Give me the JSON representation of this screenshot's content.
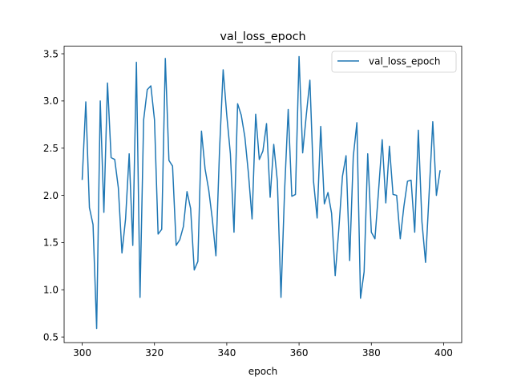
{
  "chart_data": {
    "type": "line",
    "title": "val_loss_epoch",
    "xlabel": "epoch",
    "ylabel": "",
    "xlim": [
      295,
      405
    ],
    "ylim": [
      0.44,
      3.58
    ],
    "xticks": [
      300,
      320,
      340,
      360,
      380,
      400
    ],
    "yticks": [
      0.5,
      1.0,
      1.5,
      2.0,
      2.5,
      3.0,
      3.5
    ],
    "xtick_labels": [
      "300",
      "320",
      "340",
      "360",
      "380",
      "400"
    ],
    "ytick_labels": [
      "0.5",
      "1.0",
      "1.5",
      "2.0",
      "2.5",
      "3.0",
      "3.5"
    ],
    "grid": false,
    "legend_position": "top-right",
    "series": [
      {
        "name": "val_loss_epoch",
        "color": "#1f77b4",
        "x": [
          300,
          301,
          302,
          303,
          304,
          305,
          306,
          307,
          308,
          309,
          310,
          311,
          312,
          313,
          314,
          315,
          316,
          317,
          318,
          319,
          320,
          321,
          322,
          323,
          324,
          325,
          326,
          327,
          328,
          329,
          330,
          331,
          332,
          333,
          334,
          335,
          336,
          337,
          338,
          339,
          340,
          341,
          342,
          343,
          344,
          345,
          346,
          347,
          348,
          349,
          350,
          351,
          352,
          353,
          354,
          355,
          356,
          357,
          358,
          359,
          360,
          361,
          362,
          363,
          364,
          365,
          366,
          367,
          368,
          369,
          370,
          371,
          372,
          373,
          374,
          375,
          376,
          377,
          378,
          379,
          380,
          381,
          382,
          383,
          384,
          385,
          386,
          387,
          388,
          389,
          390,
          391,
          392,
          393,
          394,
          395,
          396,
          397,
          398,
          399
        ],
        "values": [
          2.17,
          2.99,
          1.87,
          1.69,
          0.59,
          3.0,
          1.82,
          3.19,
          2.4,
          2.38,
          2.08,
          1.39,
          1.75,
          2.44,
          1.47,
          3.41,
          0.92,
          2.8,
          3.12,
          3.16,
          2.8,
          1.59,
          1.64,
          3.45,
          2.37,
          2.31,
          1.47,
          1.53,
          1.67,
          2.04,
          1.86,
          1.21,
          1.3,
          2.68,
          2.28,
          2.06,
          1.75,
          1.36,
          2.48,
          3.33,
          2.85,
          2.44,
          1.61,
          2.97,
          2.85,
          2.62,
          2.23,
          1.75,
          2.86,
          2.38,
          2.47,
          2.76,
          1.98,
          2.54,
          2.15,
          0.92,
          2.05,
          2.91,
          1.99,
          2.01,
          3.47,
          2.45,
          2.85,
          3.22,
          2.15,
          1.76,
          2.73,
          1.91,
          2.03,
          1.81,
          1.15,
          1.64,
          2.2,
          2.42,
          1.31,
          2.41,
          2.77,
          0.91,
          1.19,
          2.44,
          1.61,
          1.54,
          2.05,
          2.59,
          1.92,
          2.52,
          2.01,
          2.0,
          1.54,
          1.88,
          2.15,
          2.16,
          1.61,
          2.69,
          1.72,
          1.29,
          2.03,
          2.78,
          2.0,
          2.26
        ]
      }
    ]
  }
}
